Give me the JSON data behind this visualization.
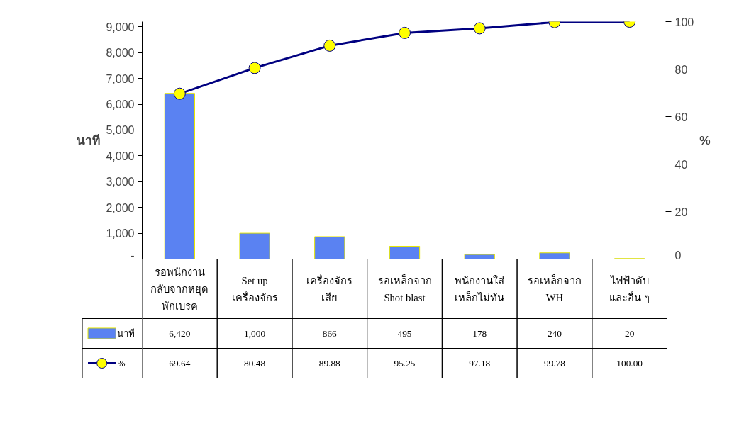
{
  "chart_data": {
    "type": "bar",
    "categories": [
      "รอพนักงาน\nกลับจากหยุด\nพักเบรค",
      "Set up\nเครื่องจักร",
      "เครื่องจักร\nเสีย",
      "รอเหล็กจาก\nShot blast",
      "พนักงานใส่\nเหล็กไม่ทัน",
      "รอเหล็กจาก\nWH",
      "ไฟฟ้าดับ\nและอื่น ๆ"
    ],
    "series": [
      {
        "name": "นาที",
        "color": "#5a82f2",
        "values": [
          6420,
          1000,
          866,
          495,
          178,
          240,
          20
        ],
        "value_labels": [
          "6,420",
          "1,000",
          "866",
          "495",
          "178",
          "240",
          "20"
        ]
      },
      {
        "name": "%",
        "type": "line",
        "axis": "y2",
        "color": "#000080",
        "values": [
          69.64,
          80.48,
          89.88,
          95.25,
          97.18,
          99.78,
          100.0
        ],
        "value_labels": [
          "69.64",
          "80.48",
          "89.88",
          "95.25",
          "97.18",
          "99.78",
          "100.00"
        ]
      }
    ],
    "ylabel": "นาที",
    "y2label": "%",
    "ylim": [
      0,
      9200
    ],
    "yticks": [
      {
        "value": 0,
        "label": "-"
      },
      {
        "value": 1000,
        "label": "1,000"
      },
      {
        "value": 2000,
        "label": "2,000"
      },
      {
        "value": 3000,
        "label": "3,000"
      },
      {
        "value": 4000,
        "label": "4,000"
      },
      {
        "value": 5000,
        "label": "5,000"
      },
      {
        "value": 6000,
        "label": "6,000"
      },
      {
        "value": 7000,
        "label": "7,000"
      },
      {
        "value": 8000,
        "label": "8,000"
      },
      {
        "value": 9000,
        "label": "9,000"
      }
    ],
    "y2lim": [
      0,
      100
    ],
    "y2ticks": [
      0,
      20,
      40,
      60,
      80,
      100
    ],
    "legend": "bottom",
    "marker": "circle",
    "grid": false
  }
}
